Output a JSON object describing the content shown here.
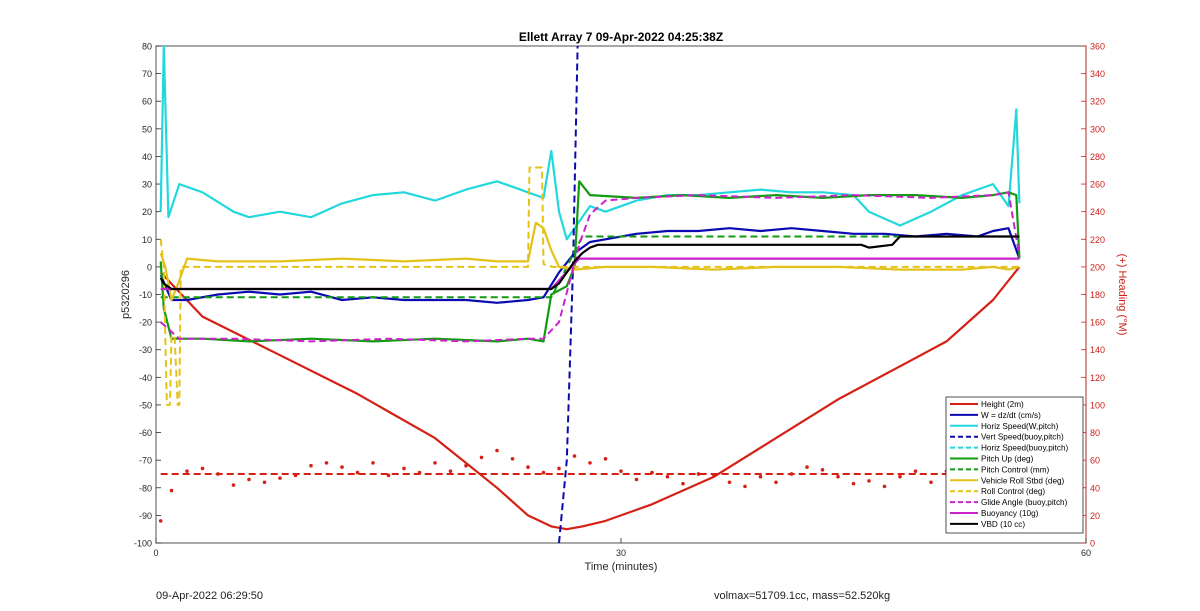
{
  "chart_data": {
    "type": "line",
    "title": "Ellett Array 7 09-Apr-2022 04:25:38Z",
    "xlabel": "Time (minutes)",
    "ylabel": "p5320296",
    "y2label": "(+) Heading (°M)",
    "xlim": [
      0,
      60
    ],
    "ylim": [
      -100,
      80
    ],
    "y2lim": [
      0,
      360
    ],
    "xticks": [
      0,
      30,
      60
    ],
    "yticks": [
      -100,
      -90,
      -80,
      -70,
      -60,
      -50,
      -40,
      -30,
      -20,
      -10,
      0,
      10,
      20,
      30,
      40,
      50,
      60,
      70,
      80
    ],
    "y2ticks": [
      0,
      20,
      40,
      60,
      80,
      100,
      120,
      140,
      160,
      180,
      200,
      220,
      240,
      260,
      280,
      300,
      320,
      340,
      360
    ],
    "grid": false,
    "legend_position": "bottom-right",
    "colors": {
      "right_axis": "#cc1f1a",
      "height": "#d62015",
      "w": "#0a0ab0",
      "horiz": "#22d8dc",
      "pitch": "#129a12",
      "roll": "#e3c21a",
      "glide": "#cc22cc",
      "vbd": "#000000"
    },
    "series": [
      {
        "name": "Height (2m)",
        "axis": "left",
        "x": [
          0.3,
          3,
          8,
          13,
          18,
          22,
          24,
          25.5,
          26.5,
          27.5,
          29,
          32,
          36,
          40,
          44,
          48,
          51,
          54,
          55.7
        ],
        "y": [
          -2,
          -18,
          -32,
          -46,
          -62,
          -80,
          -90,
          -94,
          -95,
          -94,
          -92,
          -86,
          -76,
          -62,
          -48,
          -36,
          -27,
          -12,
          0
        ]
      },
      {
        "name": "W = dz/dt (cm/s)",
        "axis": "left",
        "x": [
          0.3,
          1,
          2,
          4,
          6,
          8,
          10,
          12,
          14,
          16,
          18,
          20,
          22,
          24,
          25,
          26,
          27,
          28,
          29,
          31,
          33,
          35,
          37,
          39,
          41,
          43,
          45,
          47,
          49,
          51,
          53,
          54,
          55,
          55.7
        ],
        "y": [
          -3,
          -12,
          -12,
          -10,
          -9,
          -10,
          -9,
          -12,
          -11,
          -12,
          -12,
          -12,
          -13,
          -12,
          -11,
          -2,
          5,
          9,
          10,
          12,
          13,
          13,
          14,
          13,
          14,
          13,
          12,
          12,
          11,
          12,
          11,
          13,
          14,
          3
        ]
      },
      {
        "name": "Horiz Speed(W,pitch)",
        "axis": "left",
        "x": [
          0.3,
          0.5,
          0.8,
          1.5,
          3,
          5,
          6,
          8,
          10,
          12,
          14,
          16,
          18,
          20,
          22,
          24,
          25,
          25.5,
          26,
          26.5,
          27,
          28,
          29,
          31,
          33,
          35,
          37,
          39,
          41,
          43,
          45,
          46,
          48,
          50,
          52,
          54,
          55,
          55.5,
          55.7
        ],
        "y": [
          20,
          80,
          18,
          30,
          27,
          20,
          18,
          20,
          18,
          23,
          26,
          27,
          24,
          28,
          31,
          27,
          25,
          42,
          20,
          10,
          14,
          22,
          20,
          24,
          26,
          26,
          27,
          28,
          27,
          27,
          26,
          20,
          15,
          20,
          26,
          30,
          22,
          57,
          23
        ]
      },
      {
        "name": "Vert Speed(buoy,pitch)",
        "axis": "left",
        "dash": "7,4",
        "x": [
          26,
          26.5,
          26.9,
          27.2
        ],
        "y": [
          -100,
          -70,
          0,
          80
        ]
      },
      {
        "name": "Horiz Speed(buoy,pitch)",
        "axis": "left",
        "dash": "7,4",
        "x": [],
        "y": []
      },
      {
        "name": "Pitch Up (deg)",
        "axis": "left",
        "x": [
          0.3,
          0.5,
          1,
          1.5,
          3,
          6,
          10,
          14,
          18,
          22,
          24,
          25,
          25.5,
          26.5,
          27,
          27.3,
          28,
          31,
          34,
          37,
          40,
          43,
          46,
          49,
          52,
          54,
          55,
          55.5,
          55.7
        ],
        "y": [
          2,
          -15,
          -26,
          -26,
          -26,
          -27,
          -26,
          -27,
          -26,
          -27,
          -26,
          -27,
          -10,
          -7,
          0,
          31,
          26,
          25,
          26,
          25,
          26,
          25,
          26,
          26,
          25,
          26,
          27,
          26,
          3
        ]
      },
      {
        "name": "Pitch Control (mm)",
        "axis": "left",
        "dash": "7,4",
        "x": [
          0.3,
          1.5,
          25.5,
          26.5,
          27.5,
          55.7
        ],
        "y": [
          -11,
          -11,
          -11,
          0,
          11,
          11
        ]
      },
      {
        "name": "Vehicle Roll Stbd (deg)",
        "axis": "left",
        "x": [
          0.3,
          0.6,
          1,
          1.5,
          2,
          4,
          8,
          12,
          16,
          20,
          22,
          24,
          24.5,
          25,
          25.5,
          26,
          27,
          29,
          32,
          36,
          40,
          44,
          48,
          52,
          54,
          55,
          55.7
        ],
        "y": [
          5,
          0,
          -12,
          -5,
          3,
          2,
          2,
          3,
          2,
          3,
          2,
          2,
          16,
          14,
          6,
          0,
          -1,
          0,
          0,
          -1,
          0,
          0,
          -1,
          -1,
          0,
          -1,
          0
        ]
      },
      {
        "name": "Roll Control (deg)",
        "axis": "left",
        "dash": "7,4",
        "x": [
          0.3,
          0.5,
          0.7,
          0.9,
          1.0,
          1.2,
          1.4,
          1.5,
          1.6,
          24,
          24.1,
          24.9,
          25.0,
          25.6,
          25.8,
          55.7
        ],
        "y": [
          10,
          0,
          -50,
          -50,
          -25,
          -25,
          -50,
          -50,
          0,
          0,
          36,
          36,
          1,
          0,
          0,
          0
        ]
      },
      {
        "name": "Glide Angle (buoy,pitch)",
        "axis": "left",
        "dash": "7,4",
        "x": [
          0.3,
          1.5,
          5,
          10,
          15,
          20,
          24,
          25,
          26,
          26.7,
          27.3,
          28,
          29,
          31,
          35,
          40,
          45,
          50,
          54,
          55,
          55.7
        ],
        "y": [
          -20,
          -26,
          -26,
          -27,
          -26,
          -27,
          -26,
          -26,
          -20,
          -5,
          8,
          19,
          24,
          25,
          26,
          25,
          26,
          25,
          26,
          27,
          4
        ]
      },
      {
        "name": "Buoyancy (10g)",
        "axis": "left",
        "x": [
          0.3,
          1.5,
          25.5,
          26.8,
          27.3,
          55.7
        ],
        "y": [
          -8,
          -8,
          -8,
          0,
          3,
          3
        ]
      },
      {
        "name": "VBD (10 cc)",
        "axis": "left",
        "x": [
          0.3,
          0.5,
          1.0,
          1.5,
          25,
          25.5,
          26,
          26.5,
          27,
          27.5,
          28,
          28.5,
          45.5,
          46,
          47.5,
          48,
          55.7
        ],
        "y": [
          -4,
          -6,
          -8,
          -8,
          -8,
          -8,
          -6,
          -2,
          2,
          5,
          7,
          8,
          8,
          7,
          8,
          11,
          11
        ]
      },
      {
        "name": "Heading",
        "axis": "right",
        "style": "dots",
        "x": [
          0.3,
          1,
          2,
          3,
          4,
          5,
          6,
          7,
          8,
          9,
          10,
          11,
          12,
          13,
          14,
          15,
          16,
          17,
          18,
          19,
          20,
          21,
          22,
          23,
          24,
          25,
          26,
          27,
          28,
          29,
          30,
          31,
          32,
          33,
          34,
          35,
          36,
          37,
          38,
          39,
          40,
          41,
          42,
          43,
          44,
          45,
          46,
          47,
          48,
          49,
          50,
          51,
          52,
          53,
          54,
          55,
          55.7
        ],
        "y": [
          16,
          38,
          52,
          54,
          50,
          42,
          46,
          44,
          47,
          49,
          56,
          58,
          55,
          51,
          58,
          49,
          54,
          51,
          58,
          52,
          56,
          62,
          67,
          61,
          55,
          51,
          54,
          63,
          58,
          61,
          52,
          46,
          51,
          48,
          43,
          50,
          49,
          44,
          41,
          48,
          44,
          50,
          55,
          53,
          48,
          43,
          45,
          41,
          48,
          52,
          44,
          52,
          49,
          47,
          42,
          51,
          48
        ]
      },
      {
        "name": "Heading mean",
        "axis": "right",
        "dash": "7,4",
        "x": [
          0.3,
          55.7
        ],
        "y": [
          50,
          50
        ]
      }
    ],
    "legend": [
      "Height (2m)",
      "W = dz/dt (cm/s)",
      "Horiz Speed(W,pitch)",
      "Vert Speed(buoy,pitch)",
      "Horiz Speed(buoy,pitch)",
      "Pitch Up (deg)",
      "Pitch Control (mm)",
      "Vehicle Roll Stbd (deg)",
      "Roll Control (deg)",
      "Glide Angle (buoy,pitch)",
      "Buoyancy (10g)",
      "VBD (10 cc)"
    ]
  },
  "footer": {
    "left": "09-Apr-2022 06:29:50",
    "right": "volmax=51709.1cc, mass=52.520kg"
  }
}
